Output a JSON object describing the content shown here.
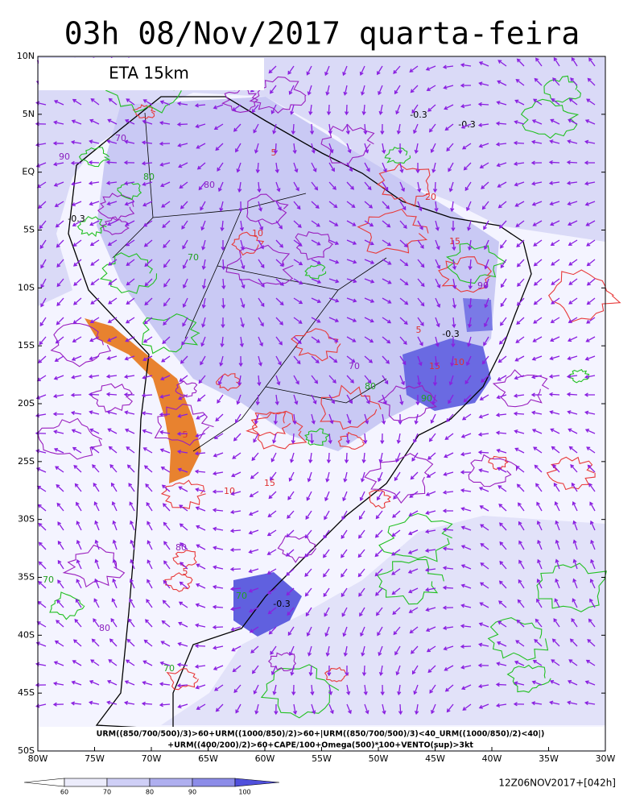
{
  "header": {
    "title": "03h 08/Nov/2017 quarta-feira",
    "model": "ETA 15km"
  },
  "map": {
    "lat_ticks": [
      {
        "value": 10,
        "label": "10N"
      },
      {
        "value": 5,
        "label": "5N"
      },
      {
        "value": 0,
        "label": "EQ"
      },
      {
        "value": -5,
        "label": "5S"
      },
      {
        "value": -10,
        "label": "10S"
      },
      {
        "value": -15,
        "label": "15S"
      },
      {
        "value": -20,
        "label": "20S"
      },
      {
        "value": -25,
        "label": "25S"
      },
      {
        "value": -30,
        "label": "30S"
      },
      {
        "value": -35,
        "label": "35S"
      },
      {
        "value": -40,
        "label": "40S"
      },
      {
        "value": -45,
        "label": "45S"
      },
      {
        "value": -50,
        "label": "50S"
      }
    ],
    "lon_ticks": [
      {
        "value": -80,
        "label": "80W"
      },
      {
        "value": -75,
        "label": "75W"
      },
      {
        "value": -70,
        "label": "70W"
      },
      {
        "value": -65,
        "label": "65W"
      },
      {
        "value": -60,
        "label": "60W"
      },
      {
        "value": -55,
        "label": "55W"
      },
      {
        "value": -50,
        "label": "50W"
      },
      {
        "value": -45,
        "label": "45W"
      },
      {
        "value": -40,
        "label": "40W"
      },
      {
        "value": -35,
        "label": "35W"
      },
      {
        "value": -30,
        "label": "30W"
      }
    ],
    "contour_labels": [
      "70",
      "80",
      "90",
      "70",
      "80",
      "-0.3",
      "-0.3",
      "5",
      "10",
      "15",
      "20",
      "70",
      "80",
      "-0.3",
      "5",
      "10",
      "15",
      "90",
      "80",
      "70",
      "-0.3",
      "5",
      "70",
      "80",
      "90",
      "-0.3",
      "15",
      "10",
      "5",
      "70"
    ],
    "formula": [
      "URM((850/700/500)/3)>60+URM((1000/850)/2)>60+|URM((850/700/500)/3)<40_URM((1000/850)/2)<40|)",
      "+URM((400/200)/2)>60+CAPE/100+Omega(500)*100+VENTO(sup)>3kt"
    ]
  },
  "colorbar": {
    "levels": [
      60,
      70,
      80,
      90,
      100
    ],
    "colors": [
      "#ececfb",
      "#cfcff6",
      "#afafef",
      "#8c8ce8",
      "#5050dc"
    ]
  },
  "footer": {
    "timestamp": "12Z06NOV2017+[042h]"
  }
}
